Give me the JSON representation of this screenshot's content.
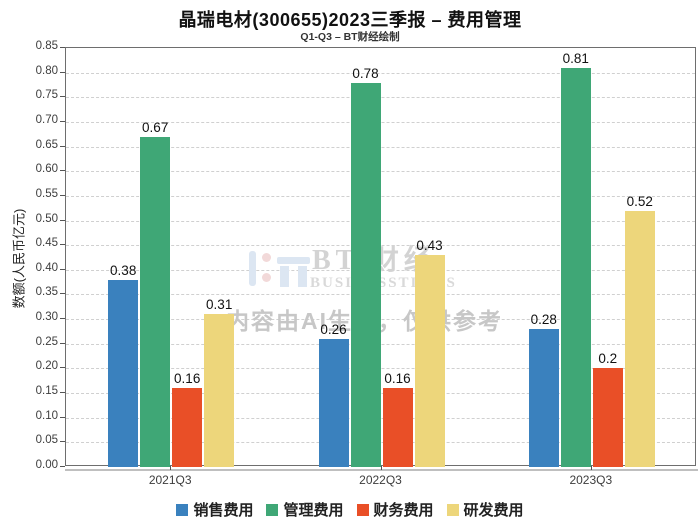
{
  "chart_data": {
    "type": "bar",
    "title": "晶瑞电材(300655)2023三季报 – 费用管理",
    "subtitle": "Q1-Q3 – BT财经绘制",
    "categories": [
      "2021Q3",
      "2022Q3",
      "2023Q3"
    ],
    "series": [
      {
        "name": "销售费用",
        "color": "#3a81be",
        "values": [
          0.38,
          0.26,
          0.28
        ]
      },
      {
        "name": "管理费用",
        "color": "#3fa776",
        "values": [
          0.67,
          0.78,
          0.81
        ]
      },
      {
        "name": "财务费用",
        "color": "#e94f27",
        "values": [
          0.16,
          0.16,
          0.2
        ]
      },
      {
        "name": "研发费用",
        "color": "#edd67b",
        "values": [
          0.31,
          0.43,
          0.52
        ]
      }
    ],
    "xlabel": "",
    "ylabel": "数额(人民币亿元)",
    "ylim": [
      0,
      0.85
    ],
    "ytick_step": 0.05,
    "grid": "horizontal-dashed",
    "legend_position": "bottom",
    "bar_value_labels": true
  },
  "watermark": {
    "brand": "BT 财经",
    "brand_sub": "BUSINESSTIMES",
    "ai_note": "内容由AI生成，仅供参考"
  }
}
